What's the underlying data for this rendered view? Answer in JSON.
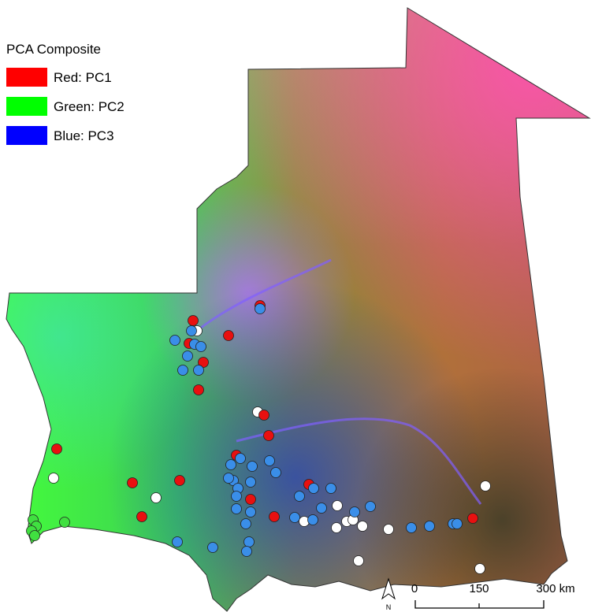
{
  "legend": {
    "title": "PCA Composite",
    "items": [
      "Red: PC1",
      "Green: PC2",
      "Blue: PC3"
    ]
  },
  "scale_bar": {
    "labels": [
      "0",
      "150",
      "300 km"
    ]
  },
  "north_arrow": {
    "label": "N"
  }
}
